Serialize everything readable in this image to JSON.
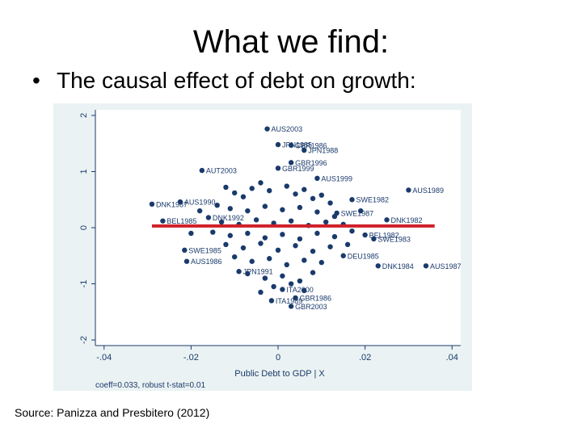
{
  "slide": {
    "title": "What we find:",
    "bullet": "•",
    "bullet_text": "The causal effect of debt on growth:",
    "source": "Source: Panizza and Presbitero (2012)"
  },
  "colors": {
    "plot_background": "#eaf2f3",
    "marker": "#1a3a6b",
    "fit_line": "#d0202a",
    "axis": "#1a3a6b"
  },
  "chart_data": {
    "type": "scatter",
    "xlabel": "Public Debt to GDP | X",
    "ylabel": "",
    "xlim": [
      -0.042,
      0.042
    ],
    "ylim": [
      -2.1,
      2.1
    ],
    "x_ticks": [
      "-.04",
      "-.02",
      "0",
      ".02",
      ".04"
    ],
    "x_tick_values": [
      -0.04,
      -0.02,
      0,
      0.02,
      0.04
    ],
    "y_ticks": [
      "-2",
      "-1",
      "0",
      "1",
      "2"
    ],
    "y_tick_values": [
      -2,
      -1,
      0,
      1,
      2
    ],
    "fit_line": {
      "x": [
        -0.029,
        0.036
      ],
      "y": [
        0.03,
        0.03
      ]
    },
    "note": "coeff=0.033, robust t-stat=0.01",
    "points": [
      {
        "x": -0.0025,
        "y": 1.76,
        "label": "AUS2003"
      },
      {
        "x": 0.0,
        "y": 1.48,
        "label": "JPN1985"
      },
      {
        "x": 0.003,
        "y": 1.47,
        "label": "GBR1986"
      },
      {
        "x": 0.006,
        "y": 1.38,
        "label": "JPN1988"
      },
      {
        "x": 0.003,
        "y": 1.16,
        "label": "GBR1996"
      },
      {
        "x": 0.0,
        "y": 1.06,
        "label": "GBR1999"
      },
      {
        "x": -0.0175,
        "y": 1.02,
        "label": "AUT2003"
      },
      {
        "x": 0.009,
        "y": 0.88,
        "label": "AUS1999"
      },
      {
        "x": 0.03,
        "y": 0.67,
        "label": "AUS1989"
      },
      {
        "x": -0.029,
        "y": 0.42,
        "label": "DNK1987"
      },
      {
        "x": -0.0225,
        "y": 0.46,
        "label": "AUS1990"
      },
      {
        "x": 0.017,
        "y": 0.5,
        "label": "SWE1982"
      },
      {
        "x": 0.0135,
        "y": 0.26,
        "label": "SWE1987"
      },
      {
        "x": 0.025,
        "y": 0.14,
        "label": "DNK1982"
      },
      {
        "x": -0.0265,
        "y": 0.12,
        "label": "BEL1985"
      },
      {
        "x": -0.016,
        "y": 0.18,
        "label": "DNK1992"
      },
      {
        "x": 0.02,
        "y": -0.13,
        "label": "BEL1982"
      },
      {
        "x": 0.022,
        "y": -0.2,
        "label": "SWE1983"
      },
      {
        "x": -0.0215,
        "y": -0.4,
        "label": "SWE1985"
      },
      {
        "x": 0.015,
        "y": -0.5,
        "label": "DEU1985"
      },
      {
        "x": -0.021,
        "y": -0.6,
        "label": "AUS1986"
      },
      {
        "x": 0.023,
        "y": -0.68,
        "label": "DNK1984"
      },
      {
        "x": 0.034,
        "y": -0.68,
        "label": "AUS1987"
      },
      {
        "x": -0.009,
        "y": -0.78,
        "label": "JPN1991"
      },
      {
        "x": 0.001,
        "y": -1.1,
        "label": "ITA2000"
      },
      {
        "x": 0.004,
        "y": -1.25,
        "label": "GBR1986"
      },
      {
        "x": -0.0015,
        "y": -1.3,
        "label": "ITA1989"
      },
      {
        "x": 0.003,
        "y": -1.4,
        "label": "GBR2003"
      },
      {
        "x": -0.012,
        "y": 0.72,
        "label": ""
      },
      {
        "x": -0.01,
        "y": 0.62,
        "label": ""
      },
      {
        "x": -0.008,
        "y": 0.55,
        "label": ""
      },
      {
        "x": -0.006,
        "y": 0.7,
        "label": ""
      },
      {
        "x": -0.004,
        "y": 0.8,
        "label": ""
      },
      {
        "x": -0.002,
        "y": 0.66,
        "label": ""
      },
      {
        "x": 0.002,
        "y": 0.74,
        "label": ""
      },
      {
        "x": 0.004,
        "y": 0.6,
        "label": ""
      },
      {
        "x": 0.006,
        "y": 0.68,
        "label": ""
      },
      {
        "x": 0.008,
        "y": 0.52,
        "label": ""
      },
      {
        "x": 0.01,
        "y": 0.58,
        "label": ""
      },
      {
        "x": 0.012,
        "y": 0.44,
        "label": ""
      },
      {
        "x": -0.014,
        "y": 0.4,
        "label": ""
      },
      {
        "x": -0.011,
        "y": 0.34,
        "label": ""
      },
      {
        "x": -0.007,
        "y": 0.3,
        "label": ""
      },
      {
        "x": -0.003,
        "y": 0.38,
        "label": ""
      },
      {
        "x": 0.001,
        "y": 0.32,
        "label": ""
      },
      {
        "x": 0.005,
        "y": 0.36,
        "label": ""
      },
      {
        "x": 0.009,
        "y": 0.28,
        "label": ""
      },
      {
        "x": 0.013,
        "y": 0.2,
        "label": ""
      },
      {
        "x": -0.013,
        "y": 0.1,
        "label": ""
      },
      {
        "x": -0.009,
        "y": 0.06,
        "label": ""
      },
      {
        "x": -0.005,
        "y": 0.14,
        "label": ""
      },
      {
        "x": -0.001,
        "y": 0.08,
        "label": ""
      },
      {
        "x": 0.003,
        "y": 0.12,
        "label": ""
      },
      {
        "x": 0.007,
        "y": 0.04,
        "label": ""
      },
      {
        "x": 0.011,
        "y": 0.1,
        "label": ""
      },
      {
        "x": 0.015,
        "y": 0.06,
        "label": ""
      },
      {
        "x": -0.015,
        "y": -0.08,
        "label": ""
      },
      {
        "x": -0.011,
        "y": -0.14,
        "label": ""
      },
      {
        "x": -0.007,
        "y": -0.1,
        "label": ""
      },
      {
        "x": -0.003,
        "y": -0.18,
        "label": ""
      },
      {
        "x": 0.001,
        "y": -0.12,
        "label": ""
      },
      {
        "x": 0.005,
        "y": -0.2,
        "label": ""
      },
      {
        "x": 0.009,
        "y": -0.1,
        "label": ""
      },
      {
        "x": 0.013,
        "y": -0.16,
        "label": ""
      },
      {
        "x": 0.017,
        "y": -0.06,
        "label": ""
      },
      {
        "x": -0.012,
        "y": -0.3,
        "label": ""
      },
      {
        "x": -0.008,
        "y": -0.36,
        "label": ""
      },
      {
        "x": -0.004,
        "y": -0.28,
        "label": ""
      },
      {
        "x": 0.0,
        "y": -0.4,
        "label": ""
      },
      {
        "x": 0.004,
        "y": -0.32,
        "label": ""
      },
      {
        "x": 0.008,
        "y": -0.42,
        "label": ""
      },
      {
        "x": 0.012,
        "y": -0.34,
        "label": ""
      },
      {
        "x": -0.01,
        "y": -0.52,
        "label": ""
      },
      {
        "x": -0.006,
        "y": -0.6,
        "label": ""
      },
      {
        "x": -0.002,
        "y": -0.55,
        "label": ""
      },
      {
        "x": 0.002,
        "y": -0.66,
        "label": ""
      },
      {
        "x": 0.006,
        "y": -0.58,
        "label": ""
      },
      {
        "x": 0.01,
        "y": -0.62,
        "label": ""
      },
      {
        "x": -0.007,
        "y": -0.82,
        "label": ""
      },
      {
        "x": -0.003,
        "y": -0.9,
        "label": ""
      },
      {
        "x": 0.001,
        "y": -0.86,
        "label": ""
      },
      {
        "x": 0.005,
        "y": -0.95,
        "label": ""
      },
      {
        "x": 0.008,
        "y": -0.8,
        "label": ""
      },
      {
        "x": -0.001,
        "y": -1.05,
        "label": ""
      },
      {
        "x": 0.003,
        "y": -1.0,
        "label": ""
      },
      {
        "x": -0.004,
        "y": -1.15,
        "label": ""
      },
      {
        "x": 0.006,
        "y": -1.12,
        "label": ""
      },
      {
        "x": -0.018,
        "y": 0.3,
        "label": ""
      },
      {
        "x": -0.02,
        "y": -0.1,
        "label": ""
      },
      {
        "x": 0.019,
        "y": 0.3,
        "label": ""
      },
      {
        "x": 0.016,
        "y": -0.3,
        "label": ""
      }
    ]
  }
}
